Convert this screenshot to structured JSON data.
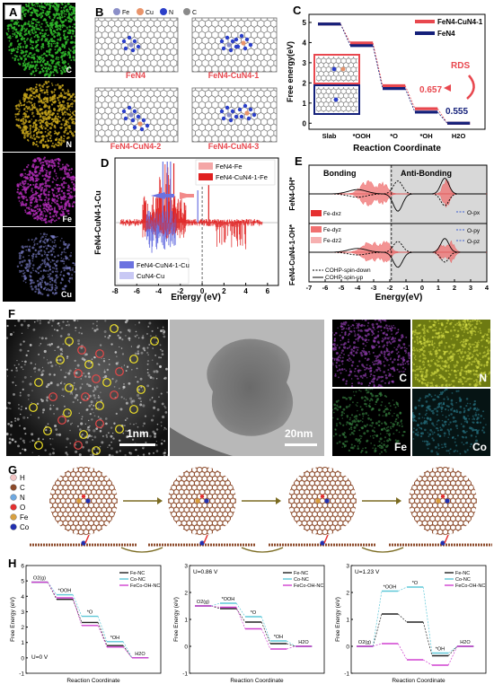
{
  "panels": {
    "A": {
      "label": "A",
      "maps": [
        "C",
        "N",
        "Fe",
        "Cu"
      ],
      "colors": [
        "#2fb52a",
        "#c8a61c",
        "#b12cb8",
        "#7b7fc9"
      ]
    },
    "B": {
      "label": "B",
      "legend": [
        "Fe",
        "Cu",
        "N",
        "C"
      ],
      "legend_colors": [
        "#8b8fc8",
        "#e9946b",
        "#2b3fc9",
        "#8a8a8a"
      ],
      "structures": [
        "FeN4",
        "FeN4-CuN4-1",
        "FeN4-CuN4-2",
        "FeN4-CuN4-3"
      ]
    },
    "C": {
      "label": "C",
      "ylabel": "Free energy(eV)",
      "xlabel": "Reaction Coordinate",
      "ticks_x": [
        "Slab",
        "*OOH",
        "*O",
        "*OH",
        "H2O"
      ],
      "ticks_y": [
        "0",
        "1",
        "2",
        "3",
        "4",
        "5"
      ],
      "series": [
        {
          "name": "FeN4-CuN4-1",
          "color": "#e8474e",
          "values": [
            4.92,
            3.98,
            1.86,
            0.72,
            0.0
          ]
        },
        {
          "name": "FeN4",
          "color": "#14207a",
          "values": [
            4.92,
            3.85,
            1.72,
            0.55,
            0.0
          ]
        }
      ],
      "annotations": {
        "rds": "RDS",
        "v1": "0.657",
        "v2": "0.555"
      }
    },
    "D": {
      "label": "D",
      "ylabel": "FeN4-CuN4-1-Cu",
      "xlabel": "Energy (eV)",
      "ticks_x": [
        "-8",
        "-6",
        "-4",
        "-2",
        "0",
        "2",
        "4",
        "6"
      ],
      "legend_top": [
        "FeN4-Fe",
        "FeN4-CuN4-1-Fe"
      ],
      "legend_bottom": [
        "FeN4-CuN4-1-Cu",
        "CuN4-Cu"
      ]
    },
    "E": {
      "label": "E",
      "ylabel_top": "FeN4-OH*",
      "ylabel_bottom": "FeN4-CuN4-1-OH*",
      "xlabel": "Energy(eV)",
      "ticks_x": [
        "-7",
        "-6",
        "-5",
        "-4",
        "-3",
        "-2",
        "-1",
        "0",
        "1",
        "2",
        "3",
        "4"
      ],
      "bonding": "Bonding",
      "antibonding": "Anti-Bonding",
      "legend_left": [
        "Fe-dxz",
        "Fe-dyz",
        "Fe-dz2"
      ],
      "legend_right": [
        "O-px",
        "O-py",
        "O-pz"
      ],
      "legend_cohp": [
        "COHP-spin-down",
        "COHP-spin-up"
      ]
    },
    "F": {
      "label": "F",
      "scale1": "1nm",
      "scale2": "20nm",
      "maps": [
        "C",
        "N",
        "Fe",
        "Co"
      ]
    },
    "G": {
      "label": "G",
      "legend": [
        "H",
        "C",
        "N",
        "O",
        "Fe",
        "Co"
      ],
      "legend_colors": [
        "#f4c4c4",
        "#8c4a2a",
        "#6ea8e0",
        "#e53030",
        "#d8a040",
        "#2030b0"
      ]
    },
    "H": {
      "label": "H",
      "ylabel": "Free Energy (eV)",
      "xlabel": "Reaction Coordinate",
      "series_names": [
        "Fe-NC",
        "Co-NC",
        "FeCo-OH-NC"
      ],
      "series_colors": [
        "#222222",
        "#5ec8d8",
        "#d040d0"
      ],
      "plots": [
        {
          "u": "U=0 V",
          "ylim": [
            -1,
            6
          ],
          "ticks_y": [
            "-1",
            "0",
            "1",
            "2",
            "3",
            "4",
            "5",
            "6"
          ],
          "species": [
            "O2(g)",
            "*OOH",
            "*O",
            "*OH",
            "H2O"
          ],
          "values": [
            [
              4.92,
              3.8,
              2.3,
              0.8,
              0.0
            ],
            [
              4.92,
              4.1,
              2.7,
              1.05,
              0.0
            ],
            [
              4.92,
              3.9,
              2.1,
              0.7,
              0.0
            ]
          ]
        },
        {
          "u": "U=0.86 V",
          "ylim": [
            -1,
            3
          ],
          "ticks_y": [
            "-1",
            "0",
            "1",
            "2",
            "3"
          ],
          "species": [
            "O2(g)",
            "*OOH",
            "*O",
            "*OH",
            "H2O"
          ],
          "values": [
            [
              1.5,
              1.4,
              0.9,
              0.1,
              0.0
            ],
            [
              1.5,
              1.6,
              1.1,
              0.2,
              0.0
            ],
            [
              1.5,
              1.45,
              0.65,
              -0.1,
              0.0
            ]
          ]
        },
        {
          "u": "U=1.23 V",
          "ylim": [
            -1,
            3
          ],
          "ticks_y": [
            "-1",
            "0",
            "1",
            "2",
            "3"
          ],
          "species": [
            "O2(g)",
            "*OOH",
            "*O",
            "*OH",
            "H2O"
          ],
          "values": [
            [
              0.0,
              1.2,
              0.9,
              -0.35,
              0.0
            ],
            [
              0.0,
              2.05,
              2.2,
              -0.25,
              0.0
            ],
            [
              0.0,
              0.1,
              -0.5,
              -0.7,
              0.0
            ]
          ]
        }
      ]
    }
  },
  "chart_data": [
    {
      "type": "line",
      "title": "",
      "xlabel": "Reaction Coordinate",
      "ylabel": "Free energy(eV)",
      "categories": [
        "Slab",
        "*OOH",
        "*O",
        "*OH",
        "H2O"
      ],
      "ylim": [
        0,
        5
      ],
      "series": [
        {
          "name": "FeN4-CuN4-1",
          "values": [
            4.92,
            3.98,
            1.86,
            0.72,
            0.0
          ]
        },
        {
          "name": "FeN4",
          "values": [
            4.92,
            3.85,
            1.72,
            0.55,
            0.0
          ]
        }
      ]
    }
  ]
}
